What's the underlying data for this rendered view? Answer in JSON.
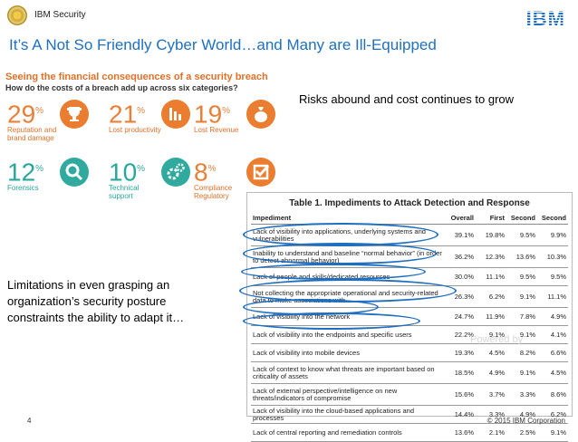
{
  "header": {
    "brand": "IBM Security",
    "ibm_logo": "IBM"
  },
  "title": "It’s A Not So Friendly Cyber World…and Many are Ill-Equipped",
  "breach": {
    "heading": "Seeing the financial consequences of a security breach",
    "subheading": "How do the costs of a breach add up across six categories?",
    "stats": [
      {
        "pct": "29",
        "label": "Reputation and brand damage",
        "icon": "trophy-icon",
        "color": "#ea7d2f"
      },
      {
        "pct": "21",
        "label": "Lost productivity",
        "icon": "bar-chart-icon",
        "color": "#ea7d2f"
      },
      {
        "pct": "19",
        "label": "Lost Revenue",
        "icon": "money-bag-icon",
        "color": "#ea7d2f"
      },
      {
        "pct": "12",
        "label": "Forensics",
        "icon": "magnifier-icon",
        "color": "#30aa9e"
      },
      {
        "pct": "10",
        "label": "Technical support",
        "icon": "gears-icon",
        "color": "#30aa9e"
      },
      {
        "pct": "8",
        "label": "Compliance Regulatory",
        "icon": "checkmark-icon",
        "color": "#ea7d2f"
      }
    ]
  },
  "risk_caption": "Risks abound and cost continues to grow",
  "limit_caption": "Limitations in even grasping an organization’s security posture constraints the ability to adapt it…",
  "table": {
    "title": "Table 1. Impediments to Attack Detection and Response",
    "headers": [
      "Impediment",
      "Overall",
      "First",
      "Second",
      "Second"
    ],
    "rows": [
      [
        "Lack of visibility into applications, underlying systems and vulnerabilities",
        "39.1%",
        "19.8%",
        "9.5%",
        "9.9%"
      ],
      [
        "Inability to understand and baseline “normal behavior” (in order to detect abnormal behavior)",
        "36.2%",
        "12.3%",
        "13.6%",
        "10.3%"
      ],
      [
        "Lack of people and skills/dedicated resources",
        "30.0%",
        "11.1%",
        "9.5%",
        "9.5%"
      ],
      [
        "Not collecting the appropriate operational and security-related data to make associations with",
        "26.3%",
        "6.2%",
        "9.1%",
        "11.1%"
      ],
      [
        "Lack of visibility into the network",
        "24.7%",
        "11.9%",
        "7.8%",
        "4.9%"
      ],
      [
        "Lack of visibility into the endpoints and specific users",
        "22.2%",
        "9.1%",
        "9.1%",
        "4.1%"
      ],
      [
        "Lack of visibility into mobile devices",
        "19.3%",
        "4.5%",
        "8.2%",
        "6.6%"
      ],
      [
        "Lack of context to know what threats are important based on criticality of assets",
        "18.5%",
        "4.9%",
        "9.1%",
        "4.5%"
      ],
      [
        "Lack of external perspective/intelligence on new threats/indicators of compromise",
        "15.6%",
        "3.7%",
        "3.3%",
        "8.6%"
      ],
      [
        "Lack of visibility into the cloud-based applications and processes",
        "14.4%",
        "3.3%",
        "4.9%",
        "6.2%"
      ],
      [
        "Lack of central reporting and remediation controls",
        "13.6%",
        "2.1%",
        "2.5%",
        "9.1%"
      ]
    ]
  },
  "watermark": "Powered by",
  "footer": {
    "page": "4",
    "copyright": "© 2015 IBM Corporation"
  }
}
